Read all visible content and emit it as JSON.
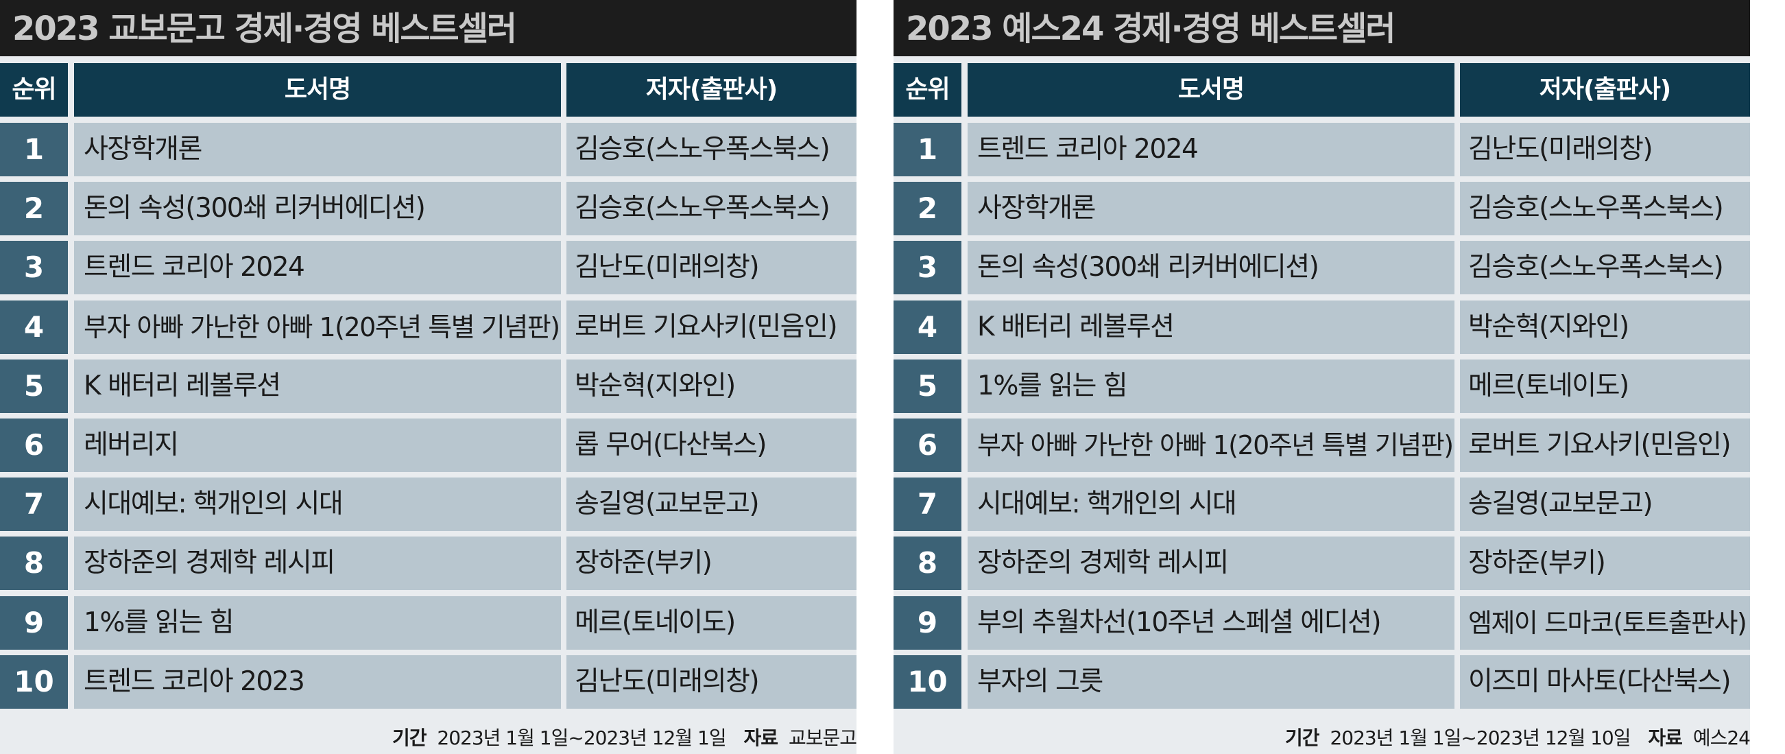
{
  "left": {
    "title": "2023 교보문고 경제·경영 베스트셀러",
    "headers": {
      "rank": "순위",
      "book": "도서명",
      "author": "저자(출판사)"
    },
    "rows": [
      {
        "rank": "1",
        "book": "사장학개론",
        "author": "김승호(스노우폭스북스)"
      },
      {
        "rank": "2",
        "book": "돈의 속성(300쇄 리커버에디션)",
        "author": "김승호(스노우폭스북스)"
      },
      {
        "rank": "3",
        "book": "트렌드 코리아 2024",
        "author": "김난도(미래의창)"
      },
      {
        "rank": "4",
        "book": "부자 아빠 가난한 아빠 1(20주년 특별 기념판)",
        "author": "로버트 기요사키(민음인)"
      },
      {
        "rank": "5",
        "book": "K 배터리 레볼루션",
        "author": "박순혁(지와인)"
      },
      {
        "rank": "6",
        "book": "레버리지",
        "author": "롭 무어(다산북스)"
      },
      {
        "rank": "7",
        "book": "시대예보: 핵개인의 시대",
        "author": "송길영(교보문고)"
      },
      {
        "rank": "8",
        "book": "장하준의 경제학 레시피",
        "author": "장하준(부키)"
      },
      {
        "rank": "9",
        "book": "1%를 읽는 힘",
        "author": "메르(토네이도)"
      },
      {
        "rank": "10",
        "book": "트렌드 코리아 2023",
        "author": "김난도(미래의창)"
      }
    ],
    "footer": {
      "period_label": "기간",
      "period": "2023년 1월 1일~2023년 12월 1일",
      "source_label": "자료",
      "source": "교보문고"
    }
  },
  "right": {
    "title": "2023 예스24 경제·경영 베스트셀러",
    "headers": {
      "rank": "순위",
      "book": "도서명",
      "author": "저자(출판사)"
    },
    "rows": [
      {
        "rank": "1",
        "book": "트렌드 코리아 2024",
        "author": "김난도(미래의창)"
      },
      {
        "rank": "2",
        "book": "사장학개론",
        "author": "김승호(스노우폭스북스)"
      },
      {
        "rank": "3",
        "book": "돈의 속성(300쇄 리커버에디션)",
        "author": "김승호(스노우폭스북스)"
      },
      {
        "rank": "4",
        "book": "K 배터리 레볼루션",
        "author": "박순혁(지와인)"
      },
      {
        "rank": "5",
        "book": "1%를 읽는 힘",
        "author": "메르(토네이도)"
      },
      {
        "rank": "6",
        "book": "부자 아빠 가난한 아빠 1(20주년 특별 기념판)",
        "author": "로버트 기요사키(민음인)"
      },
      {
        "rank": "7",
        "book": "시대예보: 핵개인의 시대",
        "author": "송길영(교보문고)"
      },
      {
        "rank": "8",
        "book": "장하준의 경제학 레시피",
        "author": "장하준(부키)"
      },
      {
        "rank": "9",
        "book": "부의 추월차선(10주년 스페셜 에디션)",
        "author": "엠제이 드마코(토트출판사)"
      },
      {
        "rank": "10",
        "book": "부자의 그릇",
        "author": "이즈미 마사토(다산북스)"
      }
    ],
    "footer": {
      "period_label": "기간",
      "period": "2023년 1월 1일~2023년 12월 10일",
      "source_label": "자료",
      "source": "예스24"
    }
  }
}
